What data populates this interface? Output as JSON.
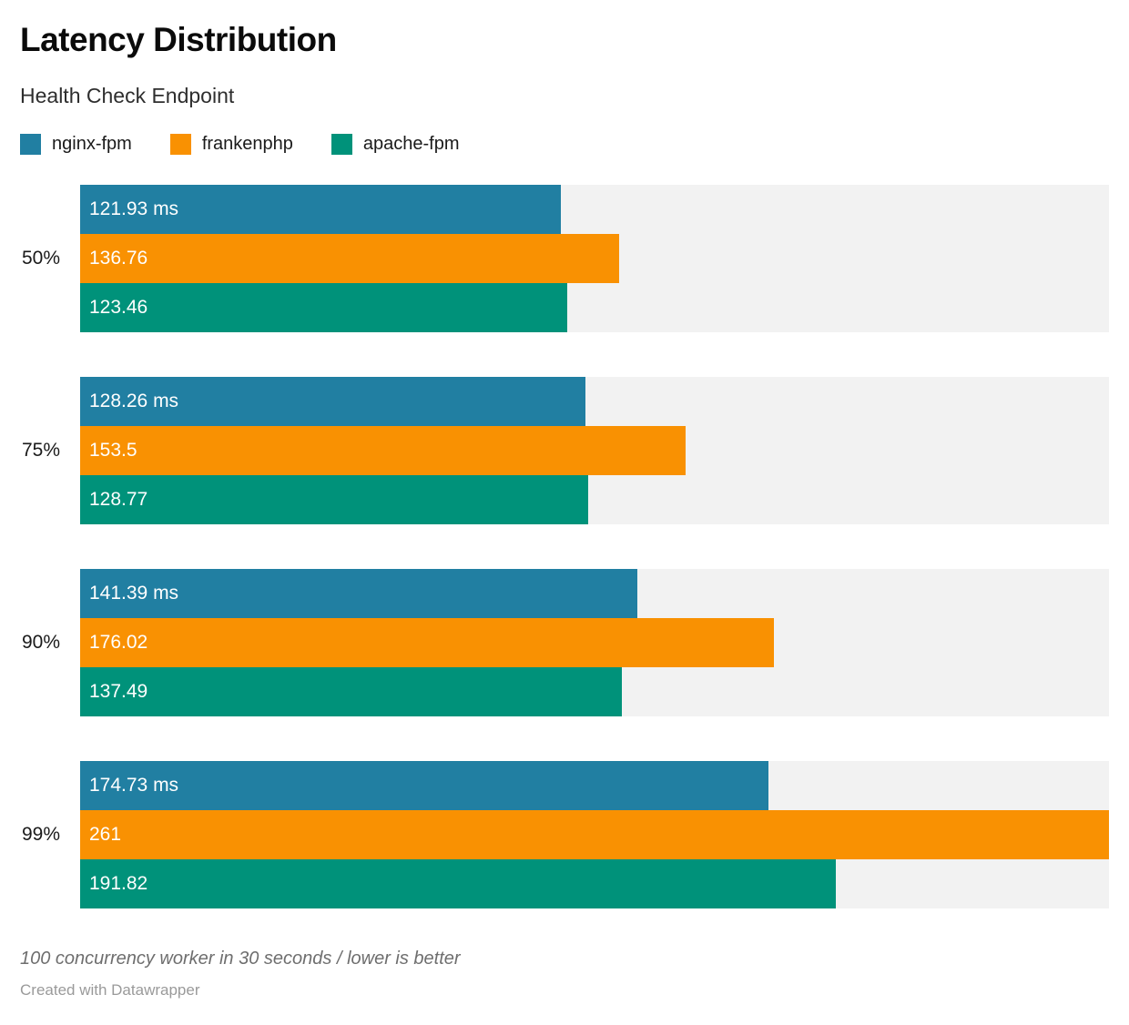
{
  "header": {
    "title": "Latency Distribution",
    "subtitle": "Health Check Endpoint"
  },
  "chart_data": {
    "type": "bar",
    "orientation": "horizontal",
    "title": "Latency Distribution",
    "subtitle": "Health Check Endpoint",
    "categories": [
      "50%",
      "75%",
      "90%",
      "99%"
    ],
    "series": [
      {
        "name": "nginx-fpm",
        "color": "#217fa2",
        "values": [
          121.93,
          128.26,
          141.39,
          174.73
        ],
        "labels": [
          "121.93 ms",
          "128.26 ms",
          "141.39 ms",
          "174.73 ms"
        ]
      },
      {
        "name": "frankenphp",
        "color": "#f99102",
        "values": [
          136.76,
          153.5,
          176.02,
          261
        ],
        "labels": [
          "136.76",
          "153.5",
          "176.02",
          "261"
        ]
      },
      {
        "name": "apache-fpm",
        "color": "#00927a",
        "values": [
          123.46,
          128.77,
          137.49,
          191.82
        ],
        "labels": [
          "123.46",
          "128.77",
          "137.49",
          "191.82"
        ]
      }
    ],
    "unit": "ms",
    "xlim": [
      0,
      261
    ],
    "grid": false,
    "legend_position": "top",
    "track_color": "#f2f2f2",
    "value_label_color": "#ffffff"
  },
  "footer": {
    "note": "100 concurrency worker in 30 seconds / lower is better",
    "credit": "Created with Datawrapper"
  }
}
